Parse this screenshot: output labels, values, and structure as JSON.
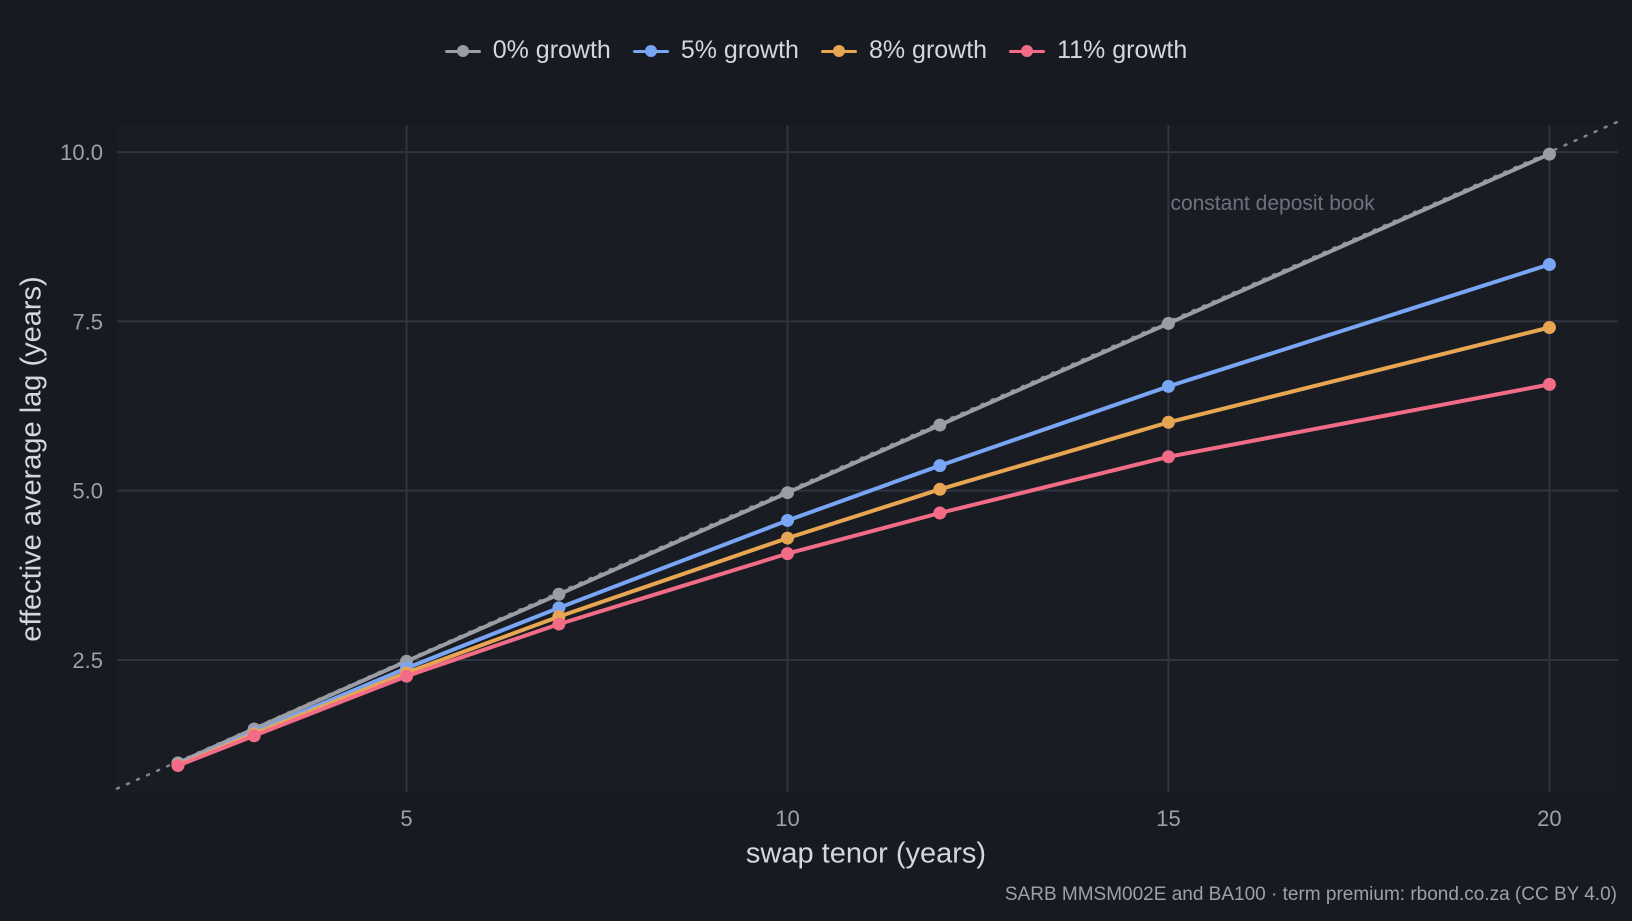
{
  "chart_data": {
    "type": "line",
    "xlabel": "swap tenor (years)",
    "ylabel": "effective average lag (years)",
    "caption": "SARB MMSM002E and BA100 · term premium: rbond.co.za (CC BY 4.0)",
    "annotation": "constant deposit book",
    "xlim": [
      1.2,
      20.9
    ],
    "ylim": [
      0.55,
      10.4
    ],
    "x_ticks": [
      5,
      10,
      15,
      20
    ],
    "y_ticks": [
      2.5,
      5.0,
      7.5,
      10.0
    ],
    "x_tick_labels": [
      "5",
      "10",
      "15",
      "20"
    ],
    "y_tick_labels": [
      "2.5",
      "5.0",
      "7.5",
      "10.0"
    ],
    "grid": true,
    "legend_position": "top",
    "reference_line": {
      "style": "dotted",
      "slope": 0.5,
      "intercept": 0,
      "color": "#808590"
    },
    "x": [
      2,
      3,
      5,
      7,
      10,
      12,
      15,
      20
    ],
    "series": [
      {
        "name": "0% growth",
        "color": "#9a9da3",
        "values": [
          0.98,
          1.48,
          2.48,
          3.47,
          4.97,
          5.97,
          7.47,
          9.97
        ]
      },
      {
        "name": "5% growth",
        "color": "#78a6f5",
        "values": [
          0.96,
          1.43,
          2.38,
          3.27,
          4.56,
          5.37,
          6.54,
          8.34
        ]
      },
      {
        "name": "8% growth",
        "color": "#e8a552",
        "values": [
          0.95,
          1.41,
          2.31,
          3.14,
          4.3,
          5.02,
          6.01,
          7.41
        ]
      },
      {
        "name": "11% growth",
        "color": "#f26c88",
        "values": [
          0.94,
          1.38,
          2.26,
          3.03,
          4.07,
          4.67,
          5.5,
          6.57
        ]
      }
    ]
  }
}
